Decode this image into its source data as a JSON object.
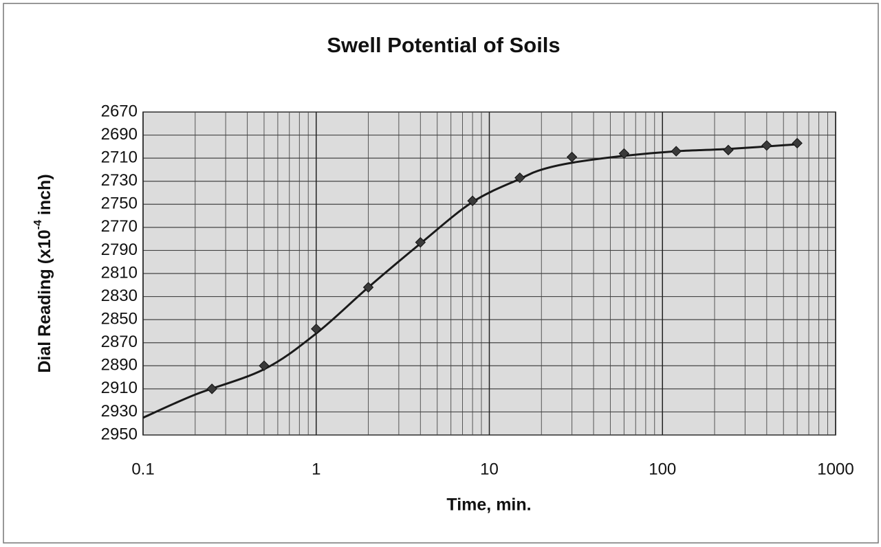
{
  "chart_data": {
    "type": "scatter",
    "title": "Swell Potential of Soils",
    "xlabel": "Time, min.",
    "ylabel": {
      "text": "Dial Reading (x10",
      "sup": "-4",
      "tail": " inch)"
    },
    "xscale": "log",
    "xlim": [
      0.1,
      1000
    ],
    "xticks": [
      0.1,
      1,
      10,
      100,
      1000
    ],
    "ylim": [
      2670,
      2950
    ],
    "y_reversed": true,
    "yticks": [
      2670,
      2690,
      2710,
      2730,
      2750,
      2770,
      2790,
      2810,
      2830,
      2850,
      2870,
      2890,
      2910,
      2930,
      2950
    ],
    "grid": true,
    "minor_grid": true,
    "series": [
      {
        "style": "markers",
        "color": "#3a3a3a",
        "x": [
          0.25,
          0.5,
          1,
          2,
          4,
          8,
          15,
          30,
          60,
          120,
          240,
          400,
          600
        ],
        "values": [
          2910,
          2890,
          2858,
          2822,
          2783,
          2747,
          2727,
          2709,
          2706,
          2704,
          2703,
          2699,
          2697
        ]
      },
      {
        "style": "line",
        "color": "#1a1a1a",
        "x": [
          0.1,
          0.2,
          0.5,
          1,
          2,
          4,
          8,
          15,
          20,
          30,
          60,
          120,
          240,
          600
        ],
        "values": [
          2935,
          2915,
          2893,
          2862,
          2822,
          2784,
          2748,
          2728,
          2720,
          2714,
          2708,
          2704,
          2702,
          2698
        ]
      }
    ]
  }
}
